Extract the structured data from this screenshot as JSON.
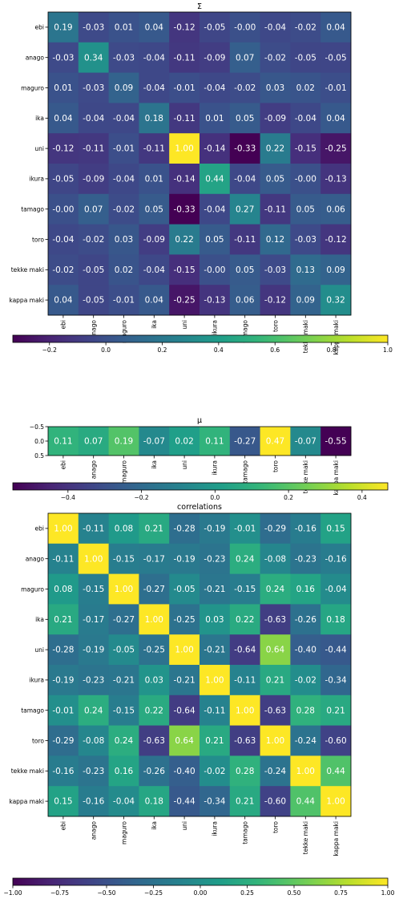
{
  "chart_data": [
    {
      "type": "heatmap",
      "title": "Σ",
      "xlabel": "",
      "ylabel": "",
      "x_labels": [
        "ebi",
        "anago",
        "maguro",
        "ika",
        "uni",
        "ikura",
        "tamago",
        "toro",
        "tekke maki",
        "kappa maki"
      ],
      "y_labels": [
        "ebi",
        "anago",
        "maguro",
        "ika",
        "uni",
        "ikura",
        "tamago",
        "toro",
        "tekke maki",
        "kappa maki"
      ],
      "values": [
        [
          0.19,
          -0.03,
          0.01,
          0.04,
          -0.12,
          -0.05,
          -0.0,
          -0.04,
          -0.02,
          0.04
        ],
        [
          -0.03,
          0.34,
          -0.03,
          -0.04,
          -0.11,
          -0.09,
          0.07,
          -0.02,
          -0.05,
          -0.05
        ],
        [
          0.01,
          -0.03,
          0.09,
          -0.04,
          -0.01,
          -0.04,
          -0.02,
          0.03,
          0.02,
          -0.01
        ],
        [
          0.04,
          -0.04,
          -0.04,
          0.18,
          -0.11,
          0.01,
          0.05,
          -0.09,
          -0.04,
          0.04
        ],
        [
          -0.12,
          -0.11,
          -0.01,
          -0.11,
          1.0,
          -0.14,
          -0.33,
          0.22,
          -0.15,
          -0.25
        ],
        [
          -0.05,
          -0.09,
          -0.04,
          0.01,
          -0.14,
          0.44,
          -0.04,
          0.05,
          -0.0,
          -0.13
        ],
        [
          -0.0,
          0.07,
          -0.02,
          0.05,
          -0.33,
          -0.04,
          0.27,
          -0.11,
          0.05,
          0.06
        ],
        [
          -0.04,
          -0.02,
          0.03,
          -0.09,
          0.22,
          0.05,
          -0.11,
          0.12,
          -0.03,
          -0.12
        ],
        [
          -0.02,
          -0.05,
          0.02,
          -0.04,
          -0.15,
          -0.0,
          0.05,
          -0.03,
          0.13,
          0.09
        ],
        [
          0.04,
          -0.05,
          -0.01,
          0.04,
          -0.25,
          -0.13,
          0.06,
          -0.12,
          0.09,
          0.32
        ]
      ],
      "cell_labels": [
        [
          "0.19",
          "-0.03",
          "0.01",
          "0.04",
          "-0.12",
          "-0.05",
          "-0.00",
          "-0.04",
          "-0.02",
          "0.04"
        ],
        [
          "-0.03",
          "0.34",
          "-0.03",
          "-0.04",
          "-0.11",
          "-0.09",
          "0.07",
          "-0.02",
          "-0.05",
          "-0.05"
        ],
        [
          "0.01",
          "-0.03",
          "0.09",
          "-0.04",
          "-0.01",
          "-0.04",
          "-0.02",
          "0.03",
          "0.02",
          "-0.01"
        ],
        [
          "0.04",
          "-0.04",
          "-0.04",
          "0.18",
          "-0.11",
          "0.01",
          "0.05",
          "-0.09",
          "-0.04",
          "0.04"
        ],
        [
          "-0.12",
          "-0.11",
          "-0.01",
          "-0.11",
          "1.00",
          "-0.14",
          "-0.33",
          "0.22",
          "-0.15",
          "-0.25"
        ],
        [
          "-0.05",
          "-0.09",
          "-0.04",
          "0.01",
          "-0.14",
          "0.44",
          "-0.04",
          "0.05",
          "-0.00",
          "-0.13"
        ],
        [
          "-0.00",
          "0.07",
          "-0.02",
          "0.05",
          "-0.33",
          "-0.04",
          "0.27",
          "-0.11",
          "0.05",
          "0.06"
        ],
        [
          "-0.04",
          "-0.02",
          "0.03",
          "-0.09",
          "0.22",
          "0.05",
          "-0.11",
          "0.12",
          "-0.03",
          "-0.12"
        ],
        [
          "-0.02",
          "-0.05",
          "0.02",
          "-0.04",
          "-0.15",
          "-0.00",
          "0.05",
          "-0.03",
          "0.13",
          "0.09"
        ],
        [
          "0.04",
          "-0.05",
          "-0.01",
          "0.04",
          "-0.25",
          "-0.13",
          "0.06",
          "-0.12",
          "0.09",
          "0.32"
        ]
      ],
      "y_ticks": [],
      "colorbar": {
        "colormap": "viridis",
        "range": [
          -0.33,
          1.0
        ],
        "ticks": [
          -0.2,
          0.0,
          0.2,
          0.4,
          0.6,
          0.8,
          1.0
        ],
        "tick_labels": [
          "−0.2",
          "0.0",
          "0.2",
          "0.4",
          "0.6",
          "0.8",
          "1.0"
        ]
      }
    },
    {
      "type": "heatmap",
      "title": "μ",
      "xlabel": "",
      "ylabel": "",
      "x_labels": [
        "ebi",
        "anago",
        "maguro",
        "ika",
        "uni",
        "ikura",
        "tamago",
        "toro",
        "tekke maki",
        "kappa maki"
      ],
      "y_labels": [],
      "values": [
        [
          0.11,
          0.07,
          0.19,
          -0.07,
          0.02,
          0.11,
          -0.27,
          0.47,
          -0.07,
          -0.55
        ]
      ],
      "cell_labels": [
        [
          "0.11",
          "0.07",
          "0.19",
          "-0.07",
          "0.02",
          "0.11",
          "-0.27",
          "0.47",
          "-0.07",
          "-0.55"
        ]
      ],
      "y_ticks": [
        -0.5,
        0.0,
        0.5
      ],
      "y_tick_labels": [
        "−0.5",
        "0.0",
        "0.5"
      ],
      "colorbar": {
        "colormap": "viridis",
        "range": [
          -0.55,
          0.47
        ],
        "ticks": [
          -0.4,
          -0.2,
          0.0,
          0.2,
          0.4
        ],
        "tick_labels": [
          "−0.4",
          "−0.2",
          "0.0",
          "0.2",
          "0.4"
        ]
      }
    },
    {
      "type": "heatmap",
      "title": "correlations",
      "xlabel": "",
      "ylabel": "",
      "x_labels": [
        "ebi",
        "anago",
        "maguro",
        "ika",
        "uni",
        "ikura",
        "tamago",
        "toro",
        "tekke maki",
        "kappa maki"
      ],
      "y_labels": [
        "ebi",
        "anago",
        "maguro",
        "ika",
        "uni",
        "ikura",
        "tamago",
        "toro",
        "tekke maki",
        "kappa maki"
      ],
      "values": [
        [
          1.0,
          -0.11,
          0.08,
          0.21,
          -0.28,
          -0.19,
          -0.01,
          -0.29,
          -0.16,
          0.15
        ],
        [
          -0.11,
          1.0,
          -0.15,
          -0.17,
          -0.19,
          -0.23,
          0.24,
          -0.08,
          -0.23,
          -0.16
        ],
        [
          0.08,
          -0.15,
          1.0,
          -0.27,
          -0.05,
          -0.21,
          -0.15,
          0.24,
          0.16,
          -0.04
        ],
        [
          0.21,
          -0.17,
          -0.27,
          1.0,
          -0.25,
          0.03,
          0.22,
          -0.63,
          -0.26,
          0.18
        ],
        [
          -0.28,
          -0.19,
          -0.05,
          -0.25,
          1.0,
          -0.21,
          -0.64,
          0.64,
          -0.4,
          -0.44
        ],
        [
          -0.19,
          -0.23,
          -0.21,
          0.03,
          -0.21,
          1.0,
          -0.11,
          0.21,
          -0.02,
          -0.34
        ],
        [
          -0.01,
          0.24,
          -0.15,
          0.22,
          -0.64,
          -0.11,
          1.0,
          -0.63,
          0.28,
          0.21
        ],
        [
          -0.29,
          -0.08,
          0.24,
          -0.63,
          0.64,
          0.21,
          -0.63,
          1.0,
          -0.24,
          -0.6
        ],
        [
          -0.16,
          -0.23,
          0.16,
          -0.26,
          -0.4,
          -0.02,
          0.28,
          -0.24,
          1.0,
          0.44
        ],
        [
          0.15,
          -0.16,
          -0.04,
          0.18,
          -0.44,
          -0.34,
          0.21,
          -0.6,
          0.44,
          1.0
        ]
      ],
      "cell_labels": [
        [
          "1.00",
          "-0.11",
          "0.08",
          "0.21",
          "-0.28",
          "-0.19",
          "-0.01",
          "-0.29",
          "-0.16",
          "0.15"
        ],
        [
          "-0.11",
          "1.00",
          "-0.15",
          "-0.17",
          "-0.19",
          "-0.23",
          "0.24",
          "-0.08",
          "-0.23",
          "-0.16"
        ],
        [
          "0.08",
          "-0.15",
          "1.00",
          "-0.27",
          "-0.05",
          "-0.21",
          "-0.15",
          "0.24",
          "0.16",
          "-0.04"
        ],
        [
          "0.21",
          "-0.17",
          "-0.27",
          "1.00",
          "-0.25",
          "0.03",
          "0.22",
          "-0.63",
          "-0.26",
          "0.18"
        ],
        [
          "-0.28",
          "-0.19",
          "-0.05",
          "-0.25",
          "1.00",
          "-0.21",
          "-0.64",
          "0.64",
          "-0.40",
          "-0.44"
        ],
        [
          "-0.19",
          "-0.23",
          "-0.21",
          "0.03",
          "-0.21",
          "1.00",
          "-0.11",
          "0.21",
          "-0.02",
          "-0.34"
        ],
        [
          "-0.01",
          "0.24",
          "-0.15",
          "0.22",
          "-0.64",
          "-0.11",
          "1.00",
          "-0.63",
          "0.28",
          "0.21"
        ],
        [
          "-0.29",
          "-0.08",
          "0.24",
          "-0.63",
          "0.64",
          "0.21",
          "-0.63",
          "1.00",
          "-0.24",
          "-0.60"
        ],
        [
          "-0.16",
          "-0.23",
          "0.16",
          "-0.26",
          "-0.40",
          "-0.02",
          "0.28",
          "-0.24",
          "1.00",
          "0.44"
        ],
        [
          "0.15",
          "-0.16",
          "-0.04",
          "0.18",
          "-0.44",
          "-0.34",
          "0.21",
          "-0.60",
          "0.44",
          "1.00"
        ]
      ],
      "y_ticks": [],
      "colorbar": {
        "colormap": "viridis",
        "range": [
          -1.0,
          1.0
        ],
        "ticks": [
          -1.0,
          -0.75,
          -0.5,
          -0.25,
          0.0,
          0.25,
          0.5,
          0.75,
          1.0
        ],
        "tick_labels": [
          "−1.00",
          "−0.75",
          "−0.50",
          "−0.25",
          "0.00",
          "0.25",
          "0.50",
          "0.75",
          "1.00"
        ]
      }
    }
  ]
}
